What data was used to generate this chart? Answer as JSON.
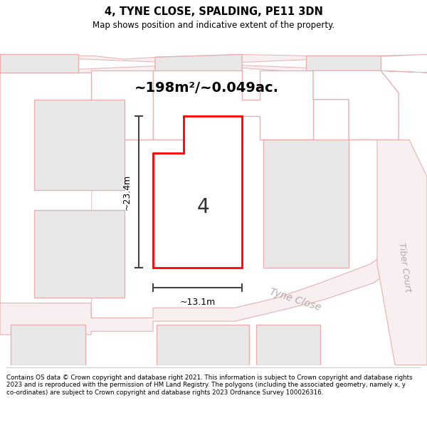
{
  "title": "4, TYNE CLOSE, SPALDING, PE11 3DN",
  "subtitle": "Map shows position and indicative extent of the property.",
  "area_text": "~198m²/~0.049ac.",
  "width_label": "~13.1m",
  "height_label": "~23.4m",
  "property_label": "4",
  "street_label1": "Tyne Close",
  "street_label2": "Tiber Court",
  "footer": "Contains OS data © Crown copyright and database right 2021. This information is subject to Crown copyright and database rights 2023 and is reproduced with the permission of HM Land Registry. The polygons (including the associated geometry, namely x, y co-ordinates) are subject to Crown copyright and database rights 2023 Ordnance Survey 100026316.",
  "bg_color": "#ffffff",
  "map_bg": "#ffffff",
  "property_fill": "#ffffff",
  "property_edge": "#ff0000",
  "road_fill": "#f8f0f0",
  "building_fill": "#e8e8e8",
  "building_edge": "#e8b0b0",
  "dim_color": "#444444",
  "text_color": "#333333",
  "road_label_color": "#b8a8a8",
  "footer_line_color": "#cccccc"
}
